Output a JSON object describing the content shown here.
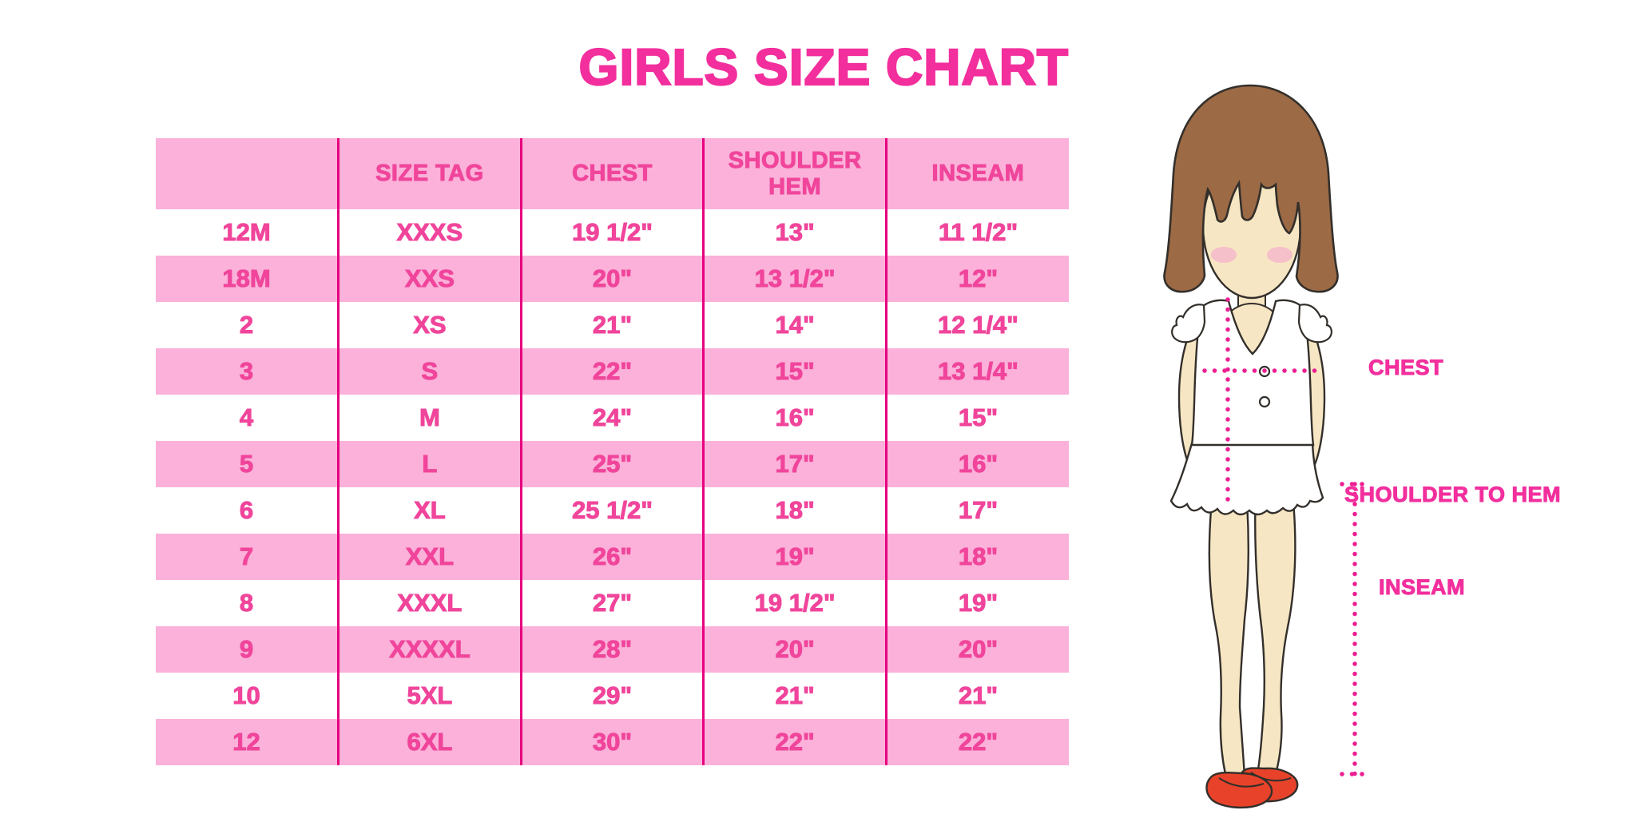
{
  "title": "GIRLS SIZE CHART",
  "colors": {
    "accent": "#f22f9d",
    "row_pink": "#fbb1d9",
    "divider_pink": "#e6007e",
    "cell_text": "#f0459b",
    "dotted_line": "#ed1e91",
    "hair_brown": "#9c6a45",
    "skin": "#f7e6c3",
    "blush": "#f5b9ca",
    "shoe_red": "#e8432a",
    "outline": "#332f2b",
    "background": "#ffffff"
  },
  "table": {
    "headers": [
      "",
      "SIZE TAG",
      "CHEST",
      "SHOULDER HEM",
      "INSEAM"
    ],
    "rows": [
      [
        "12M",
        "XXXS",
        "19 1/2\"",
        "13\"",
        "11 1/2\""
      ],
      [
        "18M",
        "XXS",
        "20\"",
        "13 1/2\"",
        "12\""
      ],
      [
        "2",
        "XS",
        "21\"",
        "14\"",
        "12 1/4\""
      ],
      [
        "3",
        "S",
        "22\"",
        "15\"",
        "13 1/4\""
      ],
      [
        "4",
        "M",
        "24\"",
        "16\"",
        "15\""
      ],
      [
        "5",
        "L",
        "25\"",
        "17\"",
        "16\""
      ],
      [
        "6",
        "XL",
        "25 1/2\"",
        "18\"",
        "17\""
      ],
      [
        "7",
        "XXL",
        "26\"",
        "19\"",
        "18\""
      ],
      [
        "8",
        "XXXL",
        "27\"",
        "19 1/2\"",
        "19\""
      ],
      [
        "9",
        "XXXXL",
        "28\"",
        "20\"",
        "20\""
      ],
      [
        "10",
        "5XL",
        "29\"",
        "21\"",
        "21\""
      ],
      [
        "12",
        "6XL",
        "30\"",
        "22\"",
        "22\""
      ]
    ]
  },
  "figure_labels": {
    "chest": "CHEST",
    "shoulder_to_hem": "SHOULDER TO HEM",
    "inseam": "INSEAM"
  }
}
